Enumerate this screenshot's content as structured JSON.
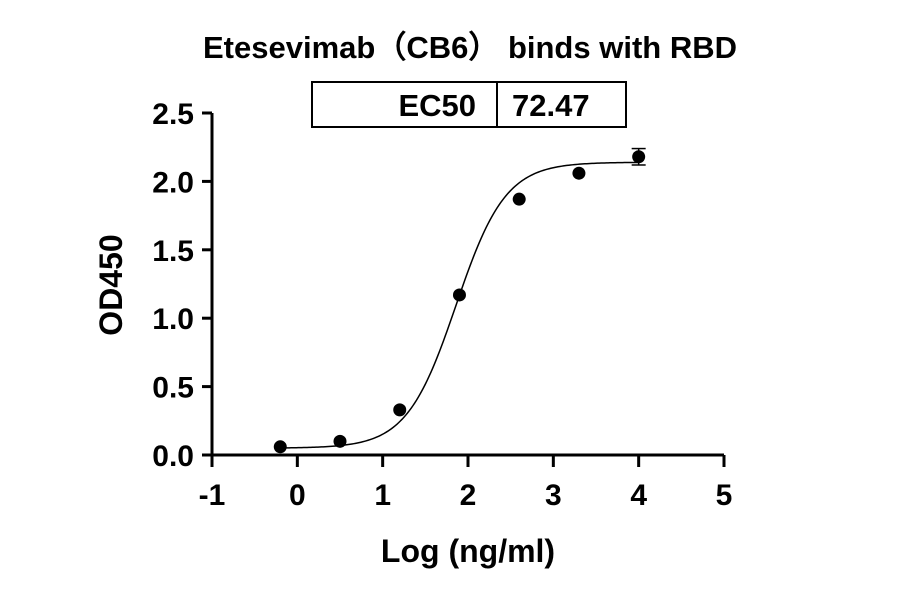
{
  "chart_data": {
    "type": "scatter",
    "title": "Etesevimab（CB6） binds with RBD",
    "xlabel": "Log (ng/ml)",
    "ylabel": "OD450",
    "xlim": [
      -1,
      5
    ],
    "ylim": [
      0,
      2.5
    ],
    "xticks": [
      "-1",
      "0",
      "1",
      "2",
      "3",
      "4",
      "5"
    ],
    "yticks": [
      "0.0",
      "0.5",
      "1.0",
      "1.5",
      "2.0",
      "2.5"
    ],
    "series": [
      {
        "points": [
          {
            "x": -0.2,
            "y": 0.06
          },
          {
            "x": 0.5,
            "y": 0.1
          },
          {
            "x": 1.2,
            "y": 0.33
          },
          {
            "x": 1.9,
            "y": 1.17
          },
          {
            "x": 2.6,
            "y": 1.87
          },
          {
            "x": 3.3,
            "y": 2.06
          },
          {
            "x": 4.0,
            "y": 2.18,
            "err": 0.06
          }
        ]
      }
    ],
    "fit": {
      "model": "four-parameter logistic",
      "bottom": 0.05,
      "top": 2.14,
      "log_ec50": 1.86,
      "hill_slope": 1.5
    },
    "ec50_box": {
      "label": "EC50",
      "value": "72.47"
    },
    "grid": false,
    "legend": "none"
  }
}
